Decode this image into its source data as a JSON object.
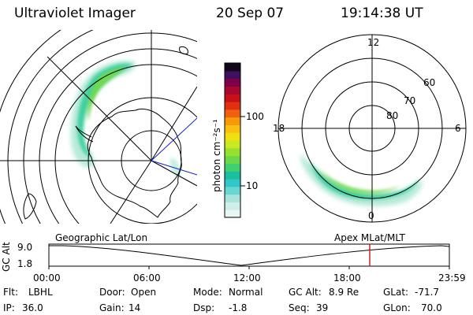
{
  "header": {
    "instrument": "Ultraviolet Imager",
    "date": "20 Sep 07",
    "time": "19:14:38 UT"
  },
  "left_panel": {
    "caption": "Geographic Lat/Lon"
  },
  "right_panel": {
    "caption": "Apex MLat/MLT",
    "mlt_labels": {
      "top": "12",
      "left": "18",
      "right": "6",
      "bottom": "0"
    },
    "lat_labels": [
      "60",
      "70",
      "80"
    ]
  },
  "colorbar": {
    "unit": "photon cm⁻²s⁻¹",
    "tick_labels": [
      "100",
      "10"
    ],
    "colors": [
      "#eaf6f4",
      "#cfeee8",
      "#a8e4dc",
      "#6ad6d0",
      "#30c8c8",
      "#18c0a0",
      "#40d070",
      "#6ad848",
      "#98e030",
      "#c8e820",
      "#f0e010",
      "#f8c010",
      "#f89a08",
      "#f06010",
      "#e03010",
      "#c81018",
      "#a80830",
      "#800048",
      "#401060",
      "#100818"
    ]
  },
  "timeline": {
    "axis_label": "GC Alt",
    "y_ticks": [
      "9.0",
      "1.8"
    ],
    "x_ticks": [
      "00:00",
      "06:00",
      "12:00",
      "18:00",
      "23:59"
    ],
    "marker_color": "#d02020"
  },
  "status": {
    "rows": [
      [
        {
          "key": "Flt:",
          "value": "LBHL"
        },
        {
          "key": "Door:",
          "value": "Open"
        },
        {
          "key": "Mode:",
          "value": "Normal"
        },
        {
          "key": "GC Alt:",
          "value": "8.9 Re"
        },
        {
          "key": "GLat:",
          "value": "-71.7"
        }
      ],
      [
        {
          "key": "IP:",
          "value": "36.0"
        },
        {
          "key": "Gain:",
          "value": "14"
        },
        {
          "key": "Dsp:",
          "value": "-1.8"
        },
        {
          "key": "Seq:",
          "value": "39"
        },
        {
          "key": "GLon:",
          "value": "70.0"
        }
      ]
    ]
  }
}
